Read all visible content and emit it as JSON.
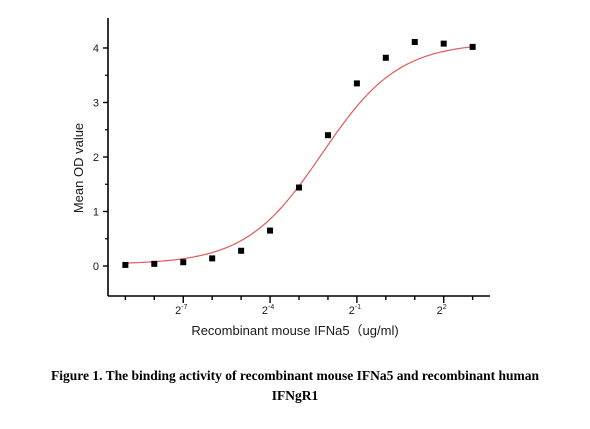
{
  "chart_data": {
    "type": "scatter",
    "x_scale": "log2",
    "xlabel": "Recombinant mouse IFNa5（ug/ml)",
    "ylabel": "Mean OD value",
    "xlim_exponent": [
      -9.6,
      3.6
    ],
    "ylim": [
      -0.55,
      4.55
    ],
    "x_ticks": [
      {
        "exponent": -7,
        "base": "2",
        "sup": "-7"
      },
      {
        "exponent": -4,
        "base": "2",
        "sup": "-4"
      },
      {
        "exponent": -1,
        "base": "2",
        "sup": "-1"
      },
      {
        "exponent": 2,
        "base": "2",
        "sup": "2"
      }
    ],
    "y_ticks": [
      0,
      1,
      2,
      3,
      4
    ],
    "grid": false,
    "colors": {
      "points": "#000000",
      "fit_curve": "#e05a5a",
      "axes": "#000000"
    },
    "series": [
      {
        "x_exponent": [
          -9.0,
          -8.0,
          -7.0,
          -6.0,
          -5.0,
          -4.0,
          -3.0,
          -2.0,
          -1.0,
          0.0,
          1.0,
          2.0,
          3.0
        ],
        "values": [
          0.02,
          0.04,
          0.07,
          0.14,
          0.28,
          0.65,
          1.44,
          2.4,
          3.35,
          3.82,
          4.11,
          4.08,
          4.02
        ]
      }
    ],
    "fit_curve": {
      "model": "4PL",
      "bottom": 0.03,
      "top": 4.1,
      "ec50_exponent": -2.2,
      "slope": 0.42
    }
  },
  "caption": {
    "line1": "Figure 1. The binding activity of recombinant mouse IFNa5 and recombinant human",
    "line2": "IFNgR1"
  }
}
